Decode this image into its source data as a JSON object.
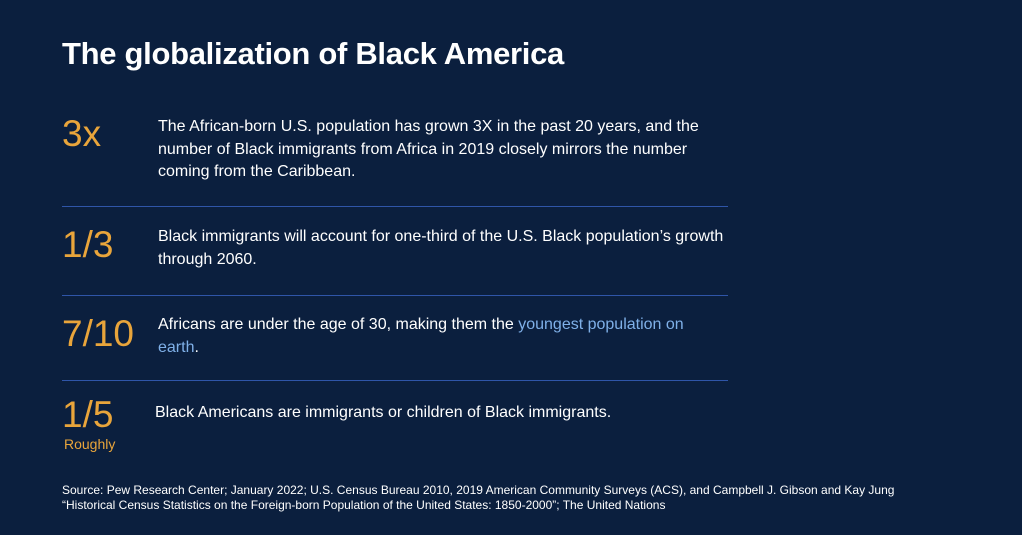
{
  "title": "The globalization of Black America",
  "items": [
    {
      "stat": "3x",
      "text": [
        "The African-born U.S. population has grown 3X in the past 20 years, and the number of Black immigrants from Africa in 2019 closely mirrors the number coming from the Caribbean."
      ]
    },
    {
      "stat": "1/3",
      "text": [
        "Black immigrants will account for one-third of the U.S. Black population’s growth through 2060."
      ]
    },
    {
      "stat": "7/10",
      "text": [
        "Africans are under the age of 30, making them the ",
        "youngest population on earth",
        "."
      ]
    },
    {
      "stat": "1/5",
      "qualifier": "Roughly",
      "text": [
        "Black Americans are immigrants or children of Black immigrants."
      ]
    }
  ],
  "source": [
    "Source: Pew Research Center; January 2022; U.S. Census Bureau 2010, 2019 American Community Surveys (ACS), and Campbell J. Gibson and Kay Jung",
    "“Historical Census Statistics on the Foreign-born Population of the United States: 1850-2000”; The United Nations"
  ]
}
